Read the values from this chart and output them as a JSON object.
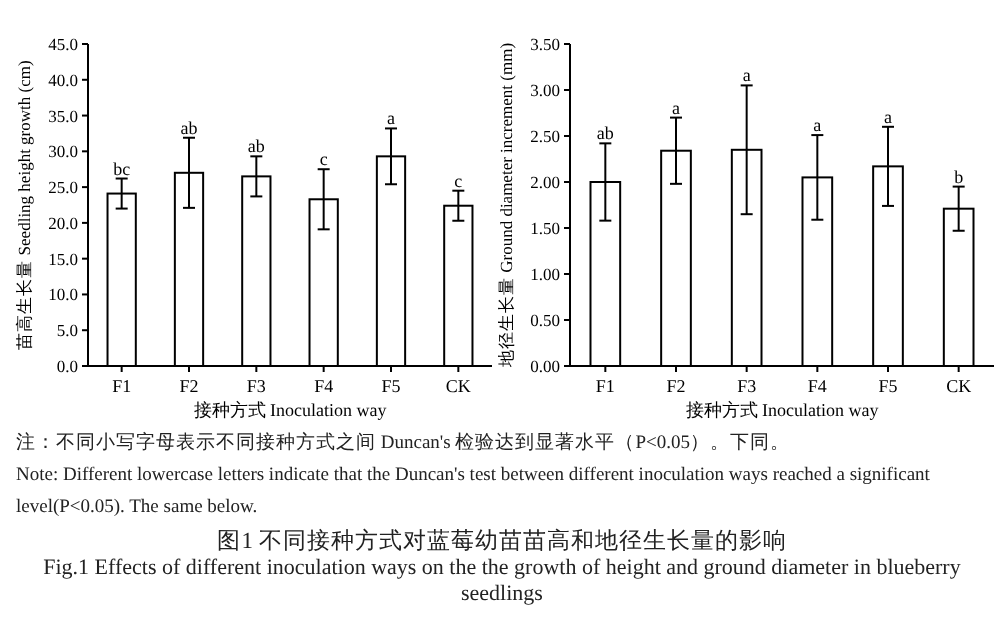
{
  "chart_data": [
    {
      "type": "bar",
      "categories": [
        "F1",
        "F2",
        "F3",
        "F4",
        "F5",
        "CK"
      ],
      "values": [
        24.1,
        27.0,
        26.5,
        23.3,
        29.3,
        22.4
      ],
      "errors": [
        2.1,
        4.9,
        2.8,
        4.2,
        3.9,
        2.1
      ],
      "color": "#ffffff",
      "xlabel": "接种方式 Inoculation way",
      "ylabel": "苗高生长量 Seedling height growth (cm)",
      "ylim": [
        0,
        45
      ],
      "yticks": [
        {
          "value": 0,
          "label": "0.0"
        },
        {
          "value": 5,
          "label": "5.0"
        },
        {
          "value": 10,
          "label": "10.0"
        },
        {
          "value": 15,
          "label": "15.0"
        },
        {
          "value": 20,
          "label": "20.0"
        },
        {
          "value": 25,
          "label": "25.0"
        },
        {
          "value": 30,
          "label": "30.0"
        },
        {
          "value": 35,
          "label": "35.0"
        },
        {
          "value": 40,
          "label": "40.0"
        },
        {
          "value": 45,
          "label": "45.0"
        }
      ],
      "annotations": [
        {
          "text": "bc",
          "x": "F1",
          "y": 26.2
        },
        {
          "text": "ab",
          "x": "F2",
          "y": 31.9
        },
        {
          "text": "ab",
          "x": "F3",
          "y": 29.3
        },
        {
          "text": "c",
          "x": "F4",
          "y": 27.5
        },
        {
          "text": "a",
          "x": "F5",
          "y": 33.2
        },
        {
          "text": "c",
          "x": "CK",
          "y": 24.5
        }
      ]
    },
    {
      "type": "bar",
      "categories": [
        "F1",
        "F2",
        "F3",
        "F4",
        "F5",
        "CK"
      ],
      "values": [
        2.0,
        2.34,
        2.35,
        2.05,
        2.17,
        1.71
      ],
      "errors": [
        0.42,
        0.36,
        0.7,
        0.46,
        0.43,
        0.24
      ],
      "color": "#ffffff",
      "xlabel": "接种方式 Inoculation way",
      "ylabel": "地径生长量 Ground diameter increment (mm)",
      "ylim": [
        0,
        3.5
      ],
      "yticks": [
        {
          "value": 0,
          "label": "0.00"
        },
        {
          "value": 0.5,
          "label": "0.50"
        },
        {
          "value": 1,
          "label": "1.00"
        },
        {
          "value": 1.5,
          "label": "1.50"
        },
        {
          "value": 2,
          "label": "2.00"
        },
        {
          "value": 2.5,
          "label": "2.50"
        },
        {
          "value": 3,
          "label": "3.00"
        },
        {
          "value": 3.5,
          "label": "3.50"
        }
      ],
      "annotations": [
        {
          "text": "ab",
          "x": "F1",
          "y": 2.42
        },
        {
          "text": "a",
          "x": "F2",
          "y": 2.7
        },
        {
          "text": "a",
          "x": "F3",
          "y": 3.05
        },
        {
          "text": "a",
          "x": "F4",
          "y": 2.51
        },
        {
          "text": "a",
          "x": "F5",
          "y": 2.6
        },
        {
          "text": "b",
          "x": "CK",
          "y": 1.95
        },
        "注：不同小写字母表示不同接种方式之间 Duncan's 检验达到显著水平（P<0.05）。下同。",
        "Note: Different lowercase letters indicate that the Duncan's test between different inoculation ways reached a significant level(P<0.05). The same below.",
        "图1 不同接种方式对蓝莓幼苗苗高和地径生长量的影响",
        "Fig.1 Effects of different inoculation ways on the the growth of height and ground diameter in blueberry seedlings"
      ]
    }
  ]
}
